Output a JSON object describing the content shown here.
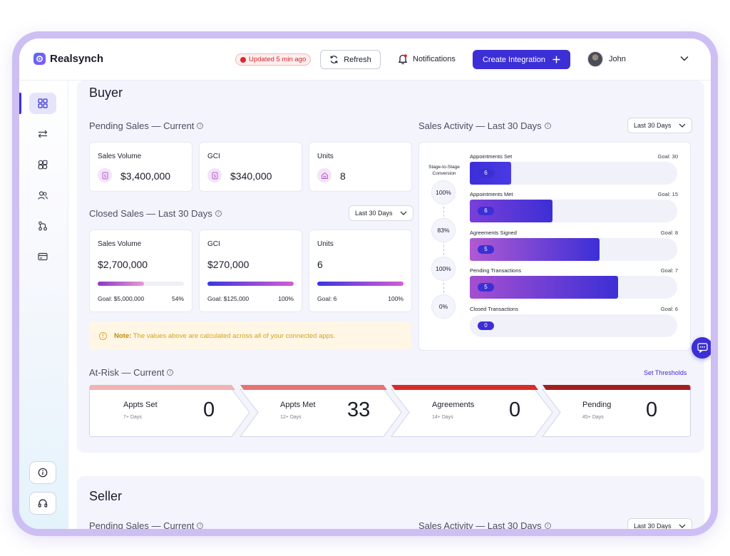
{
  "app": {
    "name": "Realsynch"
  },
  "header": {
    "status_badge": "Updated 5 min ago",
    "refresh_label": "Refresh",
    "notifications_label": "Notifications",
    "create_label": "Create Integration",
    "user_name": "John"
  },
  "buyer": {
    "title": "Buyer",
    "pending": {
      "title": "Pending Sales — Current",
      "cards": [
        {
          "label": "Sales Volume",
          "value": "$3,400,000",
          "icon": "dollar-icon"
        },
        {
          "label": "GCI",
          "value": "$340,000",
          "icon": "dollar-icon"
        },
        {
          "label": "Units",
          "value": "8",
          "icon": "house-icon"
        }
      ]
    },
    "closed": {
      "title": "Closed Sales — Last 30 Days",
      "range": "Last 30 Days",
      "cards": [
        {
          "label": "Sales Volume",
          "value": "$2,700,000",
          "goal": "Goal: $5,000,000",
          "percent_text": "54%",
          "progress": 0.54
        },
        {
          "label": "GCI",
          "value": "$270,000",
          "goal": "Goal: $125,000",
          "percent_text": "100%",
          "progress": 1.0
        },
        {
          "label": "Units",
          "value": "6",
          "goal": "Goal: 6",
          "percent_text": "100%",
          "progress": 1.0
        }
      ]
    },
    "note": {
      "prefix": "Note:",
      "text": "The values above are calculated across all of your connected apps."
    },
    "activity": {
      "title": "Sales Activity — Last 30 Days",
      "range": "Last 30 Days",
      "conversion_title": "Stage-to-Stage Conversion",
      "conversions": [
        "100%",
        "83%",
        "100%",
        "0%"
      ],
      "stages": [
        {
          "label": "Appointments Set",
          "goal": "Goal: 30",
          "count": "6",
          "progress": 0.2
        },
        {
          "label": "Appointments Met",
          "goal": "Goal: 15",
          "count": "6",
          "progress": 0.4
        },
        {
          "label": "Agreements Signed",
          "goal": "Goal: 8",
          "count": "5",
          "progress": 0.625
        },
        {
          "label": "Pending Transactions",
          "goal": "Goal: 7",
          "count": "5",
          "progress": 0.714
        },
        {
          "label": "Closed Transactions",
          "goal": "Goal: 6",
          "count": "0",
          "progress": 0
        }
      ]
    },
    "at_risk": {
      "title": "At-Risk — Current",
      "set_thresholds": "Set Thresholds",
      "items": [
        {
          "label": "Appts Set",
          "sub": "7+ Days",
          "value": "0",
          "color": "#f0b3b3"
        },
        {
          "label": "Appts Met",
          "sub": "12+ Days",
          "value": "33",
          "color": "#e57373"
        },
        {
          "label": "Agreements",
          "sub": "14+ Days",
          "value": "0",
          "color": "#d92a2a"
        },
        {
          "label": "Pending",
          "sub": "45+ Days",
          "value": "0",
          "color": "#a51e1e"
        }
      ]
    }
  },
  "seller": {
    "title": "Seller",
    "pending_title": "Pending Sales — Current",
    "activity_title": "Sales Activity — Last 30 Days",
    "range": "Last 30 Days"
  },
  "colors": {
    "accent": "#3c2fd6",
    "panel": "#f3f4fc",
    "frame": "#cdbff3"
  }
}
